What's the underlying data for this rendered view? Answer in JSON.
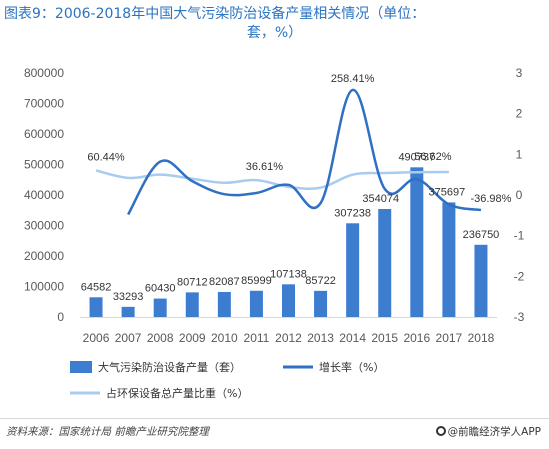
{
  "title": {
    "line1": "图表9：2006-2018年中国大气污染防治设备产量相关情况（单位：",
    "line2": "套，%）"
  },
  "source": "资料来源：国家统计局 前瞻产业研究院整理",
  "brand": "@前瞻经济学人APP",
  "colors": {
    "bar": "#3d7dd0",
    "growth_line": "#2f6fc4",
    "share_line": "#a8ccef",
    "title": "#2a73c2"
  },
  "chart_data": {
    "type": "bar",
    "categories": [
      "2006",
      "2007",
      "2008",
      "2009",
      "2010",
      "2011",
      "2012",
      "2013",
      "2014",
      "2015",
      "2016",
      "2017",
      "2018"
    ],
    "left_axis": {
      "ylim": [
        0,
        800000
      ],
      "ticks": [
        "0",
        "100000",
        "200000",
        "300000",
        "400000",
        "500000",
        "600000",
        "700000",
        "800000"
      ]
    },
    "right_axis": {
      "ylim": [
        -3,
        3
      ],
      "ticks": [
        "-3",
        "-2",
        "-1",
        "0",
        "1",
        "2",
        "3"
      ]
    },
    "series": [
      {
        "name": "大气污染防治设备产量（套）",
        "type": "bar",
        "axis": "left",
        "values": [
          64582,
          33293,
          60430,
          80712,
          82087,
          85999,
          107138,
          85722,
          307238,
          354074,
          490737,
          375697,
          236750
        ],
        "labels": [
          "64582",
          "33293",
          "60430",
          "80712",
          "82087",
          "85999",
          "107138",
          "85722",
          "307238",
          "354074",
          "490737",
          "375697",
          "236750"
        ]
      },
      {
        "name": "增长率（%）",
        "type": "line",
        "axis": "right",
        "smooth": true,
        "values": [
          null,
          -0.48,
          0.82,
          0.34,
          0.02,
          0.05,
          0.25,
          -0.2,
          2.5841,
          0.15,
          0.39,
          -0.23,
          -0.3698
        ],
        "labels": [
          {
            "index": 8,
            "text": "258.41%"
          },
          {
            "index": 12,
            "text": "-36.98%"
          }
        ]
      },
      {
        "name": "占环保设备总产量比重（%）",
        "type": "line",
        "axis": "right",
        "smooth": true,
        "values": [
          0.6044,
          0.42,
          0.5,
          0.4,
          0.3,
          0.3661,
          0.2,
          0.18,
          0.5,
          0.54,
          0.56,
          0.5662,
          null
        ],
        "labels": [
          {
            "index": 0,
            "text": "60.44%"
          },
          {
            "index": 5,
            "text": "36.61%"
          },
          {
            "index": 11,
            "text": "56.62%"
          }
        ]
      }
    ],
    "legend": {
      "placement": "bottom"
    }
  }
}
